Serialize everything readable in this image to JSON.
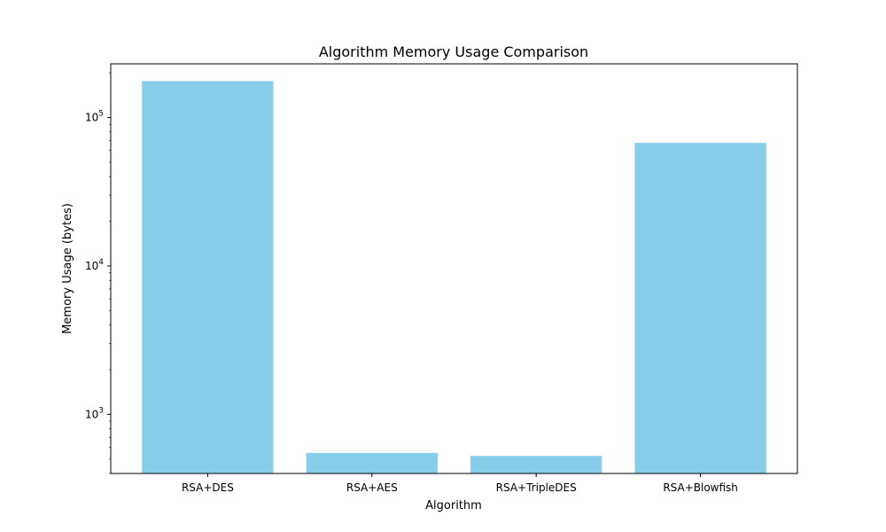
{
  "chart_data": {
    "type": "bar",
    "title": "Algorithm Memory Usage Comparison",
    "xlabel": "Algorithm",
    "ylabel": "Memory Usage (bytes)",
    "yscale": "log",
    "ylim": [
      400,
      230000
    ],
    "yticks": [
      {
        "value": 1000,
        "base": "10",
        "exp": "3"
      },
      {
        "value": 10000,
        "base": "10",
        "exp": "4"
      },
      {
        "value": 100000,
        "base": "10",
        "exp": "5"
      }
    ],
    "categories": [
      "RSA+DES",
      "RSA+AES",
      "RSA+TripleDES",
      "RSA+Blowfish"
    ],
    "values": [
      176000,
      550,
      525,
      67500
    ],
    "bar_color": "#87ceeb",
    "grid": false,
    "legend": "none"
  }
}
